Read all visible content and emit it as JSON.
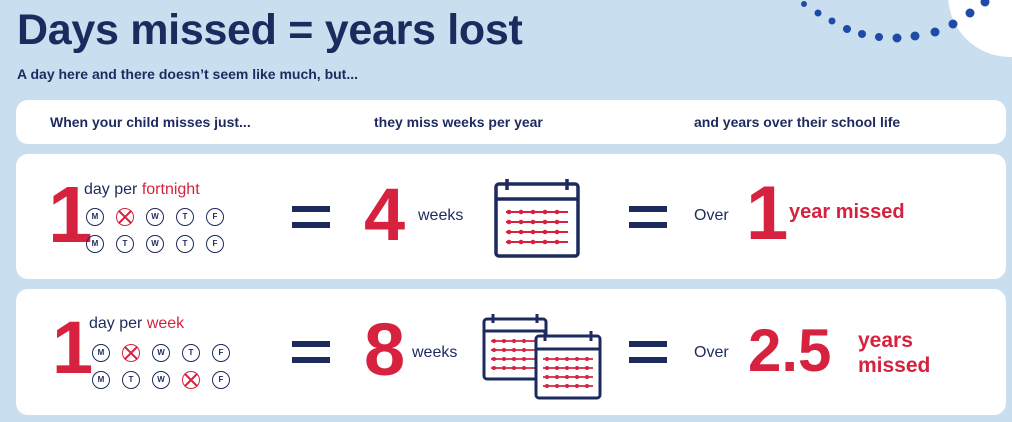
{
  "title": "Days missed = years lost",
  "subtitle": "A day here and there doesn’t seem like much, but...",
  "header": {
    "col1": "When your child misses just...",
    "col2": "they miss weeks per year",
    "col3": "and years over their school life"
  },
  "rows": [
    {
      "days_count": "1",
      "freq_prefix": "day per",
      "freq_unit": "fortnight",
      "week1": [
        "M",
        "T",
        "W",
        "T",
        "F"
      ],
      "week1_missed": [
        false,
        true,
        false,
        false,
        false
      ],
      "week2": [
        "M",
        "T",
        "W",
        "T",
        "F"
      ],
      "week2_missed": [
        false,
        false,
        false,
        false,
        false
      ],
      "weeks_count": "4",
      "weeks_label": "weeks",
      "over_label": "Over",
      "years_count": "1",
      "years_label": "year missed"
    },
    {
      "days_count": "1",
      "freq_prefix": "day per",
      "freq_unit": "week",
      "week1": [
        "M",
        "T",
        "W",
        "T",
        "F"
      ],
      "week1_missed": [
        false,
        true,
        false,
        false,
        false
      ],
      "week2": [
        "M",
        "T",
        "W",
        "T",
        "F"
      ],
      "week2_missed": [
        false,
        false,
        false,
        true,
        false
      ],
      "weeks_count": "8",
      "weeks_label": "weeks",
      "over_label": "Over",
      "years_count": "2.5",
      "years_label_line1": "years",
      "years_label_line2": "missed"
    }
  ],
  "colors": {
    "navy": "#1d2a5e",
    "red": "#d6223f",
    "background": "#c9dff0",
    "dots": "#1f4aa8"
  },
  "icons": [
    "calendar-icon",
    "calendar-pair-icon",
    "decorative-dots"
  ]
}
